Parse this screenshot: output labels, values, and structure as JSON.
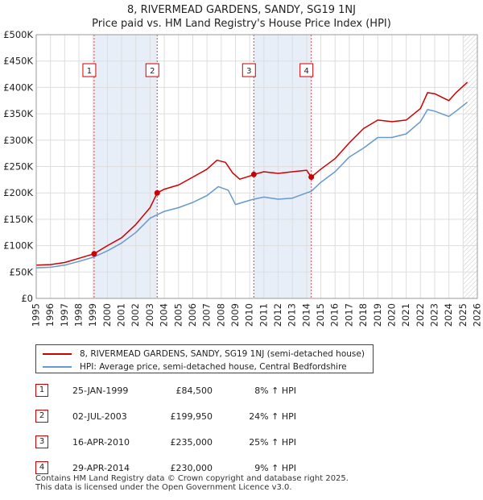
{
  "title": {
    "line1": "8, RIVERMEAD GARDENS, SANDY, SG19 1NJ",
    "line2": "Price paid vs. HM Land Registry's House Price Index (HPI)"
  },
  "colors": {
    "property": "#cc0000",
    "hpi": "#6699cc",
    "shade": "#e8eef8",
    "grid": "#dddddd"
  },
  "chart_data": {
    "type": "line",
    "title": "8, RIVERMEAD GARDENS, SANDY, SG19 1NJ — Price paid vs. HM Land Registry's House Price Index (HPI)",
    "xlim": [
      1995,
      2026
    ],
    "ylim": [
      0,
      500000
    ],
    "x_ticks": [
      1995,
      1996,
      1997,
      1998,
      1999,
      2000,
      2001,
      2002,
      2003,
      2004,
      2005,
      2006,
      2007,
      2008,
      2009,
      2010,
      2011,
      2012,
      2013,
      2014,
      2015,
      2016,
      2017,
      2018,
      2019,
      2020,
      2021,
      2022,
      2023,
      2024,
      2025,
      2026
    ],
    "y_ticks": [
      {
        "value": 0,
        "label": "£0"
      },
      {
        "value": 50000,
        "label": "£50K"
      },
      {
        "value": 100000,
        "label": "£100K"
      },
      {
        "value": 150000,
        "label": "£150K"
      },
      {
        "value": 200000,
        "label": "£200K"
      },
      {
        "value": 250000,
        "label": "£250K"
      },
      {
        "value": 300000,
        "label": "£300K"
      },
      {
        "value": 350000,
        "label": "£350K"
      },
      {
        "value": 400000,
        "label": "£400K"
      },
      {
        "value": 450000,
        "label": "£450K"
      },
      {
        "value": 500000,
        "label": "£500K"
      }
    ],
    "shaded_ranges": [
      [
        1999.07,
        2003.5
      ],
      [
        2010.29,
        2014.33
      ]
    ],
    "series": [
      {
        "name": "8, RIVERMEAD GARDENS, SANDY, SG19 1NJ (semi-detached house)",
        "color": "#cc0000",
        "points": [
          [
            1995,
            63000
          ],
          [
            1996,
            64000
          ],
          [
            1997,
            68000
          ],
          [
            1998,
            76000
          ],
          [
            1999.07,
            84500
          ],
          [
            2000,
            100000
          ],
          [
            2001,
            115000
          ],
          [
            2002,
            140000
          ],
          [
            2003,
            172000
          ],
          [
            2003.5,
            199950
          ],
          [
            2004,
            207000
          ],
          [
            2005,
            215000
          ],
          [
            2006,
            230000
          ],
          [
            2007,
            245000
          ],
          [
            2007.7,
            262000
          ],
          [
            2008.3,
            258000
          ],
          [
            2008.8,
            238000
          ],
          [
            2009.3,
            226000
          ],
          [
            2010,
            232000
          ],
          [
            2010.29,
            235000
          ],
          [
            2011,
            240000
          ],
          [
            2012,
            237000
          ],
          [
            2013,
            240000
          ],
          [
            2014,
            243000
          ],
          [
            2014.33,
            230000
          ],
          [
            2015,
            245000
          ],
          [
            2016,
            265000
          ],
          [
            2017,
            295000
          ],
          [
            2018,
            322000
          ],
          [
            2019,
            338000
          ],
          [
            2020,
            335000
          ],
          [
            2021,
            338000
          ],
          [
            2022,
            360000
          ],
          [
            2022.5,
            390000
          ],
          [
            2023,
            388000
          ],
          [
            2024,
            375000
          ],
          [
            2024.5,
            390000
          ],
          [
            2025.3,
            410000
          ]
        ]
      },
      {
        "name": "HPI: Average price, semi-detached house, Central Bedfordshire",
        "color": "#6699cc",
        "points": [
          [
            1995,
            58000
          ],
          [
            1996,
            59000
          ],
          [
            1997,
            63000
          ],
          [
            1998,
            70000
          ],
          [
            1999,
            78000
          ],
          [
            2000,
            90000
          ],
          [
            2001,
            105000
          ],
          [
            2002,
            125000
          ],
          [
            2003,
            152000
          ],
          [
            2004,
            165000
          ],
          [
            2005,
            172000
          ],
          [
            2006,
            182000
          ],
          [
            2007,
            195000
          ],
          [
            2007.8,
            212000
          ],
          [
            2008.5,
            205000
          ],
          [
            2009,
            178000
          ],
          [
            2009.5,
            182000
          ],
          [
            2010,
            186000
          ],
          [
            2010.29,
            188000
          ],
          [
            2011,
            192000
          ],
          [
            2012,
            188000
          ],
          [
            2013,
            190000
          ],
          [
            2014,
            200000
          ],
          [
            2014.33,
            203000
          ],
          [
            2015,
            220000
          ],
          [
            2016,
            240000
          ],
          [
            2017,
            268000
          ],
          [
            2018,
            285000
          ],
          [
            2019,
            305000
          ],
          [
            2020,
            305000
          ],
          [
            2021,
            312000
          ],
          [
            2022,
            335000
          ],
          [
            2022.5,
            358000
          ],
          [
            2023,
            355000
          ],
          [
            2024,
            345000
          ],
          [
            2024.5,
            355000
          ],
          [
            2025.3,
            372000
          ]
        ]
      }
    ],
    "sales": [
      {
        "num": "1",
        "x": 1999.07,
        "y": 84500
      },
      {
        "num": "2",
        "x": 2003.5,
        "y": 199950
      },
      {
        "num": "3",
        "x": 2010.29,
        "y": 235000
      },
      {
        "num": "4",
        "x": 2014.33,
        "y": 230000
      }
    ],
    "future_from": 2025.0
  },
  "legend": {
    "property": "8, RIVERMEAD GARDENS, SANDY, SG19 1NJ (semi-detached house)",
    "hpi": "HPI: Average price, semi-detached house, Central Bedfordshire"
  },
  "sales_table": [
    {
      "num": "1",
      "date": "25-JAN-1999",
      "price": "£84,500",
      "hpi": "8% ↑ HPI"
    },
    {
      "num": "2",
      "date": "02-JUL-2003",
      "price": "£199,950",
      "hpi": "24% ↑ HPI"
    },
    {
      "num": "3",
      "date": "16-APR-2010",
      "price": "£235,000",
      "hpi": "25% ↑ HPI"
    },
    {
      "num": "4",
      "date": "29-APR-2014",
      "price": "£230,000",
      "hpi": "9% ↑ HPI"
    }
  ],
  "footer": {
    "line1": "Contains HM Land Registry data © Crown copyright and database right 2025.",
    "line2": "This data is licensed under the Open Government Licence v3.0."
  }
}
